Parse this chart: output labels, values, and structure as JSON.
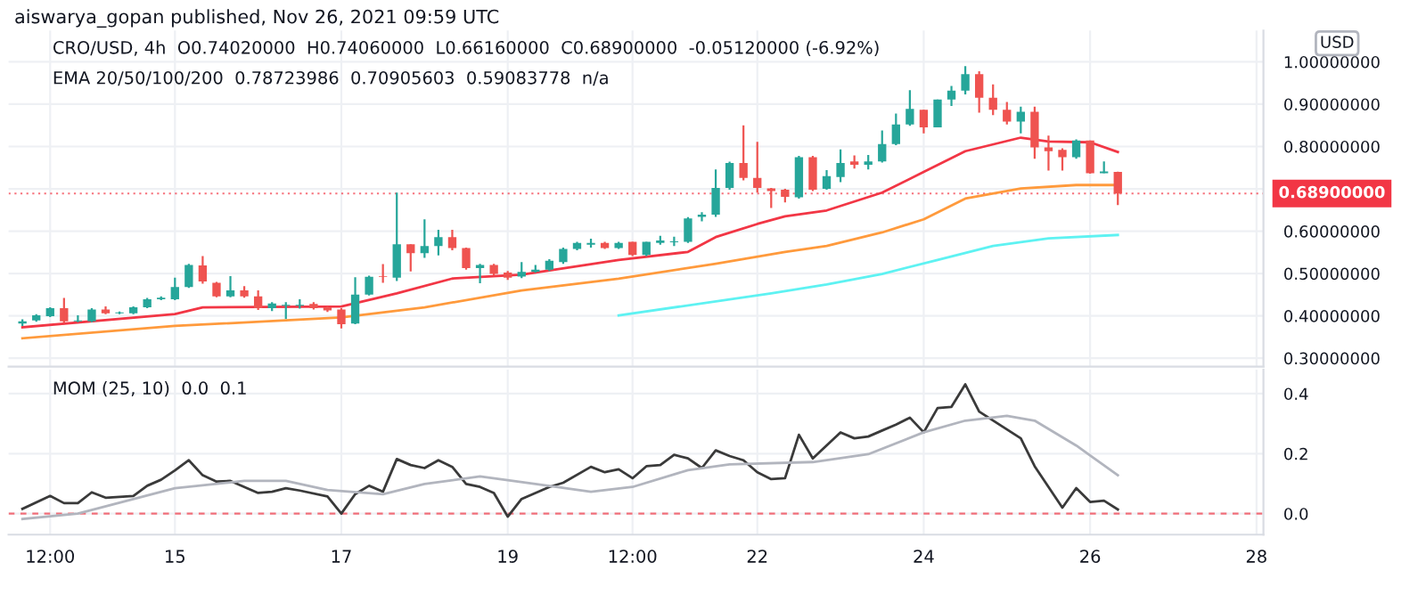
{
  "chart_data": [
    {
      "type": "candlestick",
      "title": "aiswarya_gopan published, Nov 26, 2021 09:59 UTC",
      "subtitle": "CRO/USD, 4h  O0.74020000  H0.74060000  L0.66160000  C0.68900000  -0.05120000 (-6.92%)",
      "annotations": [
        "EMA 20/50/100/200  0.78723986  0.70905603  0.59083778  n/a",
        "USD"
      ],
      "x": [
        "2021-11-13T04:00",
        "2021-11-13T08:00",
        "2021-11-13T12:00",
        "2021-11-13T16:00",
        "2021-11-13T20:00",
        "2021-11-14T00:00",
        "2021-11-14T04:00",
        "2021-11-14T08:00",
        "2021-11-14T12:00",
        "2021-11-14T16:00",
        "2021-11-14T20:00",
        "2021-11-15T00:00",
        "2021-11-15T04:00",
        "2021-11-15T08:00",
        "2021-11-15T12:00",
        "2021-11-15T16:00",
        "2021-11-15T20:00",
        "2021-11-16T00:00",
        "2021-11-16T04:00",
        "2021-11-16T08:00",
        "2021-11-16T12:00",
        "2021-11-16T16:00",
        "2021-11-16T20:00",
        "2021-11-17T00:00",
        "2021-11-17T04:00",
        "2021-11-17T08:00",
        "2021-11-17T12:00",
        "2021-11-17T16:00",
        "2021-11-17T20:00",
        "2021-11-18T00:00",
        "2021-11-18T04:00",
        "2021-11-18T08:00",
        "2021-11-18T12:00",
        "2021-11-18T16:00",
        "2021-11-18T20:00",
        "2021-11-19T00:00",
        "2021-11-19T04:00",
        "2021-11-19T08:00",
        "2021-11-19T12:00",
        "2021-11-19T16:00",
        "2021-11-19T20:00",
        "2021-11-20T00:00",
        "2021-11-20T04:00",
        "2021-11-20T08:00",
        "2021-11-20T12:00",
        "2021-11-20T16:00",
        "2021-11-20T20:00",
        "2021-11-21T00:00",
        "2021-11-21T04:00",
        "2021-11-21T08:00",
        "2021-11-21T12:00",
        "2021-11-21T16:00",
        "2021-11-21T20:00",
        "2021-11-22T00:00",
        "2021-11-22T04:00",
        "2021-11-22T08:00",
        "2021-11-22T12:00",
        "2021-11-22T16:00",
        "2021-11-22T20:00",
        "2021-11-23T00:00",
        "2021-11-23T04:00",
        "2021-11-23T08:00",
        "2021-11-23T12:00",
        "2021-11-23T16:00",
        "2021-11-23T20:00",
        "2021-11-24T00:00",
        "2021-11-24T04:00",
        "2021-11-24T08:00",
        "2021-11-24T12:00",
        "2021-11-24T16:00",
        "2021-11-24T20:00",
        "2021-11-25T00:00",
        "2021-11-25T04:00",
        "2021-11-25T08:00",
        "2021-11-25T12:00",
        "2021-11-25T16:00",
        "2021-11-25T20:00",
        "2021-11-26T00:00",
        "2021-11-26T04:00",
        "2021-11-26T08:00"
      ],
      "ohlc": [
        [
          0.382,
          0.392,
          0.376,
          0.387
        ],
        [
          0.389,
          0.404,
          0.386,
          0.401
        ],
        [
          0.399,
          0.42,
          0.397,
          0.418
        ],
        [
          0.418,
          0.442,
          0.383,
          0.387
        ],
        [
          0.387,
          0.401,
          0.385,
          0.389
        ],
        [
          0.387,
          0.418,
          0.385,
          0.415
        ],
        [
          0.415,
          0.422,
          0.404,
          0.406
        ],
        [
          0.406,
          0.41,
          0.404,
          0.407
        ],
        [
          0.406,
          0.422,
          0.404,
          0.42
        ],
        [
          0.42,
          0.442,
          0.418,
          0.439
        ],
        [
          0.439,
          0.446,
          0.437,
          0.443
        ],
        [
          0.439,
          0.49,
          0.437,
          0.468
        ],
        [
          0.468,
          0.523,
          0.466,
          0.52
        ],
        [
          0.519,
          0.541,
          0.476,
          0.481
        ],
        [
          0.478,
          0.48,
          0.444,
          0.446
        ],
        [
          0.446,
          0.494,
          0.444,
          0.46
        ],
        [
          0.46,
          0.47,
          0.443,
          0.446
        ],
        [
          0.446,
          0.46,
          0.414,
          0.418
        ],
        [
          0.418,
          0.432,
          0.411,
          0.429
        ],
        [
          0.424,
          0.432,
          0.393,
          0.425
        ],
        [
          0.424,
          0.439,
          0.417,
          0.426
        ],
        [
          0.428,
          0.432,
          0.415,
          0.418
        ],
        [
          0.42,
          0.422,
          0.409,
          0.413
        ],
        [
          0.415,
          0.418,
          0.37,
          0.38
        ],
        [
          0.382,
          0.491,
          0.38,
          0.45
        ],
        [
          0.45,
          0.495,
          0.448,
          0.492
        ],
        [
          0.494,
          0.522,
          0.478,
          0.492
        ],
        [
          0.49,
          0.691,
          0.482,
          0.569
        ],
        [
          0.569,
          0.569,
          0.505,
          0.548
        ],
        [
          0.548,
          0.628,
          0.537,
          0.565
        ],
        [
          0.565,
          0.603,
          0.543,
          0.586
        ],
        [
          0.586,
          0.603,
          0.555,
          0.56
        ],
        [
          0.56,
          0.561,
          0.509,
          0.513
        ],
        [
          0.513,
          0.523,
          0.477,
          0.52
        ],
        [
          0.52,
          0.523,
          0.495,
          0.499
        ],
        [
          0.502,
          0.506,
          0.485,
          0.49
        ],
        [
          0.493,
          0.527,
          0.489,
          0.504
        ],
        [
          0.504,
          0.52,
          0.502,
          0.509
        ],
        [
          0.509,
          0.534,
          0.506,
          0.53
        ],
        [
          0.527,
          0.561,
          0.523,
          0.558
        ],
        [
          0.558,
          0.575,
          0.555,
          0.572
        ],
        [
          0.568,
          0.582,
          0.561,
          0.572
        ],
        [
          0.572,
          0.575,
          0.558,
          0.56
        ],
        [
          0.56,
          0.575,
          0.558,
          0.572
        ],
        [
          0.575,
          0.575,
          0.541,
          0.544
        ],
        [
          0.544,
          0.575,
          0.541,
          0.575
        ],
        [
          0.572,
          0.589,
          0.568,
          0.578
        ],
        [
          0.574,
          0.587,
          0.565,
          0.576
        ],
        [
          0.575,
          0.633,
          0.572,
          0.63
        ],
        [
          0.634,
          0.645,
          0.623,
          0.639
        ],
        [
          0.639,
          0.746,
          0.634,
          0.702
        ],
        [
          0.702,
          0.764,
          0.698,
          0.761
        ],
        [
          0.761,
          0.85,
          0.72,
          0.726
        ],
        [
          0.726,
          0.811,
          0.691,
          0.702
        ],
        [
          0.701,
          0.702,
          0.655,
          0.695
        ],
        [
          0.698,
          0.7,
          0.668,
          0.681
        ],
        [
          0.68,
          0.778,
          0.677,
          0.775
        ],
        [
          0.775,
          0.778,
          0.695,
          0.698
        ],
        [
          0.7,
          0.744,
          0.698,
          0.73
        ],
        [
          0.728,
          0.793,
          0.716,
          0.761
        ],
        [
          0.765,
          0.779,
          0.748,
          0.757
        ],
        [
          0.757,
          0.78,
          0.746,
          0.765
        ],
        [
          0.765,
          0.838,
          0.762,
          0.806
        ],
        [
          0.806,
          0.878,
          0.803,
          0.852
        ],
        [
          0.852,
          0.933,
          0.849,
          0.889
        ],
        [
          0.887,
          0.887,
          0.831,
          0.845
        ],
        [
          0.845,
          0.911,
          0.845,
          0.911
        ],
        [
          0.911,
          0.943,
          0.896,
          0.932
        ],
        [
          0.932,
          0.99,
          0.923,
          0.971
        ],
        [
          0.971,
          0.978,
          0.88,
          0.915
        ],
        [
          0.915,
          0.947,
          0.874,
          0.887
        ],
        [
          0.887,
          0.905,
          0.852,
          0.859
        ],
        [
          0.859,
          0.894,
          0.831,
          0.882
        ],
        [
          0.882,
          0.894,
          0.771,
          0.798
        ],
        [
          0.798,
          0.826,
          0.743,
          0.789
        ],
        [
          0.792,
          0.796,
          0.743,
          0.775
        ],
        [
          0.775,
          0.817,
          0.771,
          0.814
        ],
        [
          0.814,
          0.814,
          0.736,
          0.737
        ],
        [
          0.737,
          0.765,
          0.737,
          0.741
        ],
        [
          0.7402,
          0.7406,
          0.6616,
          0.689
        ]
      ],
      "colors": [
        "#26a69a",
        "#26a69a",
        "#26a69a",
        "#ef5350",
        "#26a69a",
        "#26a69a",
        "#ef5350",
        "#26a69a",
        "#26a69a",
        "#26a69a",
        "#26a69a",
        "#26a69a",
        "#26a69a",
        "#ef5350",
        "#ef5350",
        "#26a69a",
        "#ef5350",
        "#ef5350",
        "#26a69a",
        "#26a69a",
        "#26a69a",
        "#ef5350",
        "#ef5350",
        "#ef5350",
        "#26a69a",
        "#26a69a",
        "#ef5350",
        "#26a69a",
        "#ef5350",
        "#26a69a",
        "#26a69a",
        "#ef5350",
        "#ef5350",
        "#26a69a",
        "#ef5350",
        "#ef5350",
        "#26a69a",
        "#26a69a",
        "#26a69a",
        "#26a69a",
        "#26a69a",
        "#26a69a",
        "#ef5350",
        "#26a69a",
        "#ef5350",
        "#26a69a",
        "#26a69a",
        "#26a69a",
        "#26a69a",
        "#26a69a",
        "#26a69a",
        "#26a69a",
        "#ef5350",
        "#ef5350",
        "#ef5350",
        "#ef5350",
        "#26a69a",
        "#ef5350",
        "#26a69a",
        "#26a69a",
        "#ef5350",
        "#26a69a",
        "#26a69a",
        "#26a69a",
        "#26a69a",
        "#ef5350",
        "#26a69a",
        "#26a69a",
        "#26a69a",
        "#ef5350",
        "#ef5350",
        "#ef5350",
        "#26a69a",
        "#ef5350",
        "#ef5350",
        "#ef5350",
        "#26a69a",
        "#ef5350",
        "#26a69a",
        "#ef5350"
      ],
      "series": [
        {
          "type": "line",
          "color": "#f23645",
          "x": [
            "2021-11-13T04:00",
            "2021-11-15T00:00",
            "2021-11-15T08:00",
            "2021-11-17T00:00",
            "2021-11-17T16:00",
            "2021-11-18T08:00",
            "2021-11-19T04:00",
            "2021-11-20T08:00",
            "2021-11-21T04:00",
            "2021-11-21T12:00",
            "2021-11-22T00:00",
            "2021-11-22T08:00",
            "2021-11-22T20:00",
            "2021-11-23T12:00",
            "2021-11-24T00:00",
            "2021-11-24T12:00",
            "2021-11-25T04:00",
            "2021-11-25T12:00",
            "2021-11-26T00:00",
            "2021-11-26T08:00"
          ],
          "values": [
            0.373,
            0.404,
            0.42,
            0.422,
            0.453,
            0.488,
            0.497,
            0.532,
            0.551,
            0.586,
            0.617,
            0.635,
            0.649,
            0.691,
            0.74,
            0.789,
            0.821,
            0.812,
            0.81,
            0.787
          ]
        },
        {
          "type": "line",
          "color": "#ff9a3c",
          "x": [
            "2021-11-13T04:00",
            "2021-11-15T00:00",
            "2021-11-17T00:00",
            "2021-11-18T00:00",
            "2021-11-19T04:00",
            "2021-11-20T08:00",
            "2021-11-21T12:00",
            "2021-11-22T08:00",
            "2021-11-22T20:00",
            "2021-11-23T12:00",
            "2021-11-24T00:00",
            "2021-11-24T12:00",
            "2021-11-25T04:00",
            "2021-11-25T20:00",
            "2021-11-26T08:00"
          ],
          "values": [
            0.347,
            0.376,
            0.396,
            0.42,
            0.46,
            0.488,
            0.523,
            0.551,
            0.565,
            0.597,
            0.628,
            0.677,
            0.701,
            0.709,
            0.709
          ]
        },
        {
          "type": "line",
          "color": "#5ef2f2",
          "x": [
            "2021-11-20T08:00",
            "2021-11-22T04:00",
            "2021-11-22T20:00",
            "2021-11-23T12:00",
            "2021-11-24T04:00",
            "2021-11-24T20:00",
            "2021-11-25T12:00",
            "2021-11-26T08:00"
          ],
          "values": [
            0.401,
            0.453,
            0.474,
            0.499,
            0.532,
            0.565,
            0.583,
            0.591
          ]
        }
      ],
      "xlim": [
        "2021-11-13T00:00",
        "2021-11-28T02:00"
      ],
      "ylim": [
        0.28,
        1.074
      ],
      "yticks": [
        {
          "value": 0.3,
          "label": "0.30000000"
        },
        {
          "value": 0.4,
          "label": "0.40000000"
        },
        {
          "value": 0.5,
          "label": "0.50000000"
        },
        {
          "value": 0.6,
          "label": "0.60000000"
        },
        {
          "value": 0.7,
          "label": null
        },
        {
          "value": 0.8,
          "label": "0.80000000"
        },
        {
          "value": 0.9,
          "label": "0.90000000"
        },
        {
          "value": 1.0,
          "label": "1.00000000"
        }
      ],
      "ref_lines": [
        {
          "axis": "y",
          "value": 0.689,
          "label": "0.68900000",
          "color": "#f23645",
          "line_style": "dotted"
        }
      ],
      "grid": true,
      "tick_labels": "y",
      "legend": false
    },
    {
      "type": "line",
      "title": "MOM (25, 10)  0.0  0.1",
      "series": [
        {
          "color": "#3a3a3a",
          "x": [
            "2021-11-13T04:00",
            "2021-11-13T12:00",
            "2021-11-13T16:00",
            "2021-11-13T20:00",
            "2021-11-14T00:00",
            "2021-11-14T04:00",
            "2021-11-14T12:00",
            "2021-11-14T16:00",
            "2021-11-14T20:00",
            "2021-11-15T00:00",
            "2021-11-15T04:00",
            "2021-11-15T08:00",
            "2021-11-15T12:00",
            "2021-11-15T16:00",
            "2021-11-16T00:00",
            "2021-11-16T04:00",
            "2021-11-16T08:00",
            "2021-11-16T12:00",
            "2021-11-16T20:00",
            "2021-11-17T00:00",
            "2021-11-17T04:00",
            "2021-11-17T08:00",
            "2021-11-17T12:00",
            "2021-11-17T16:00",
            "2021-11-17T20:00",
            "2021-11-18T00:00",
            "2021-11-18T04:00",
            "2021-11-18T08:00",
            "2021-11-18T12:00",
            "2021-11-18T16:00",
            "2021-11-18T20:00",
            "2021-11-19T00:00",
            "2021-11-19T04:00",
            "2021-11-19T12:00",
            "2021-11-19T16:00",
            "2021-11-20T00:00",
            "2021-11-20T04:00",
            "2021-11-20T08:00",
            "2021-11-20T12:00",
            "2021-11-20T16:00",
            "2021-11-20T20:00",
            "2021-11-21T00:00",
            "2021-11-21T04:00",
            "2021-11-21T08:00",
            "2021-11-21T12:00",
            "2021-11-21T16:00",
            "2021-11-21T20:00",
            "2021-11-22T00:00",
            "2021-11-22T04:00",
            "2021-11-22T08:00",
            "2021-11-22T12:00",
            "2021-11-22T16:00",
            "2021-11-23T00:00",
            "2021-11-23T04:00",
            "2021-11-23T08:00",
            "2021-11-23T12:00",
            "2021-11-23T16:00",
            "2021-11-23T20:00",
            "2021-11-24T00:00",
            "2021-11-24T04:00",
            "2021-11-24T08:00",
            "2021-11-24T12:00",
            "2021-11-24T16:00",
            "2021-11-25T04:00",
            "2021-11-25T08:00",
            "2021-11-25T16:00",
            "2021-11-25T20:00",
            "2021-11-26T00:00",
            "2021-11-26T04:00",
            "2021-11-26T08:00"
          ],
          "values": [
            0.016,
            0.059,
            0.035,
            0.035,
            0.071,
            0.053,
            0.059,
            0.093,
            0.113,
            0.144,
            0.178,
            0.128,
            0.107,
            0.109,
            0.069,
            0.073,
            0.085,
            0.077,
            0.057,
            0.0,
            0.065,
            0.093,
            0.073,
            0.182,
            0.162,
            0.152,
            0.178,
            0.156,
            0.099,
            0.089,
            0.069,
            -0.01,
            0.049,
            0.089,
            0.103,
            0.156,
            0.138,
            0.148,
            0.118,
            0.158,
            0.162,
            0.196,
            0.184,
            0.152,
            0.211,
            0.192,
            0.178,
            0.138,
            0.115,
            0.118,
            0.263,
            0.184,
            0.271,
            0.251,
            0.257,
            0.277,
            0.297,
            0.32,
            0.271,
            0.352,
            0.356,
            0.431,
            0.34,
            0.251,
            0.158,
            0.02,
            0.085,
            0.039,
            0.043,
            0.014
          ]
        },
        {
          "color": "#b2b5be",
          "x": [
            "2021-11-13T04:00",
            "2021-11-13T20:00",
            "2021-11-15T00:00",
            "2021-11-15T20:00",
            "2021-11-16T08:00",
            "2021-11-16T20:00",
            "2021-11-17T12:00",
            "2021-11-18T00:00",
            "2021-11-18T16:00",
            "2021-11-19T08:00",
            "2021-11-20T00:00",
            "2021-11-20T12:00",
            "2021-11-21T04:00",
            "2021-11-21T16:00",
            "2021-11-22T16:00",
            "2021-11-23T08:00",
            "2021-11-24T00:00",
            "2021-11-24T12:00",
            "2021-11-25T00:00",
            "2021-11-25T08:00",
            "2021-11-25T20:00",
            "2021-11-26T08:00"
          ],
          "values": [
            -0.018,
            0.0,
            0.085,
            0.109,
            0.109,
            0.079,
            0.065,
            0.099,
            0.124,
            0.099,
            0.073,
            0.089,
            0.145,
            0.164,
            0.172,
            0.198,
            0.271,
            0.31,
            0.326,
            0.31,
            0.227,
            0.128
          ]
        }
      ],
      "xlim": [
        "2021-11-13T00:00",
        "2021-11-28T02:00"
      ],
      "xticks": [
        {
          "value": "2021-11-13T12:00",
          "label": "12:00"
        },
        {
          "value": "2021-11-15T00:00",
          "label": "15"
        },
        {
          "value": "2021-11-17T00:00",
          "label": "17"
        },
        {
          "value": "2021-11-19T00:00",
          "label": "19"
        },
        {
          "value": "2021-11-20T12:00",
          "label": "12:00"
        },
        {
          "value": "2021-11-22T00:00",
          "label": "22"
        },
        {
          "value": "2021-11-24T00:00",
          "label": "24"
        },
        {
          "value": "2021-11-26T00:00",
          "label": "26"
        },
        {
          "value": "2021-11-28T00:00",
          "label": "28"
        }
      ],
      "ylim": [
        -0.07,
        0.48
      ],
      "yticks": [
        {
          "value": 0.0,
          "label": "0.0"
        },
        {
          "value": 0.2,
          "label": "0.2"
        },
        {
          "value": 0.4,
          "label": "0.4"
        }
      ],
      "ref_lines": [
        {
          "axis": "y",
          "value": 0.0,
          "color": "#f23645",
          "line_style": "dashed"
        }
      ],
      "grid": true,
      "legend": false
    }
  ]
}
